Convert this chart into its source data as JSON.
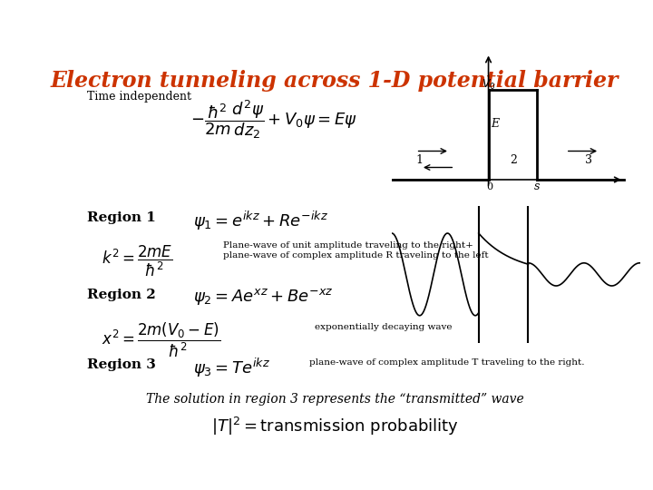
{
  "title": "Electron tunneling across 1-D potential barrier",
  "title_color": "#CC3300",
  "bg_color": "#FFFFFF",
  "subtitle": "Time independent",
  "region1_label": "Region 1",
  "region2_label": "Region 2",
  "region3_label": "Region 3",
  "eq_schrodinger": "$-\\dfrac{\\hbar^2}{2m}\\dfrac{d^2\\psi}{dz_2}+V_0\\psi = E\\psi$",
  "eq_psi1": "$\\psi_1 = e^{ikz} + Re^{-ikz}$",
  "eq_k2": "$k^2 = \\dfrac{2mE}{\\hbar^2}$",
  "eq_psi2": "$\\psi_2 = Ae^{xz} + Be^{-xz}$",
  "eq_x2": "$x^2 = \\dfrac{2m(V_0 - E)}{\\hbar^2}$",
  "eq_psi3": "$\\psi_3 = Te^{ikz}$",
  "eq_T2": "$|T|^2 = \\mathrm{transmission\\ probability}$",
  "note_region1": "Plane-wave of unit amplitude traveling to the right+\nplane-wave of complex amplitude R traveling to the left",
  "note_region2": "exponentially decaying wave",
  "note_region3": "plane-wave of complex amplitude T traveling to the right.",
  "bottom_note": "The solution in region 3 represents the “transmitted” wave"
}
